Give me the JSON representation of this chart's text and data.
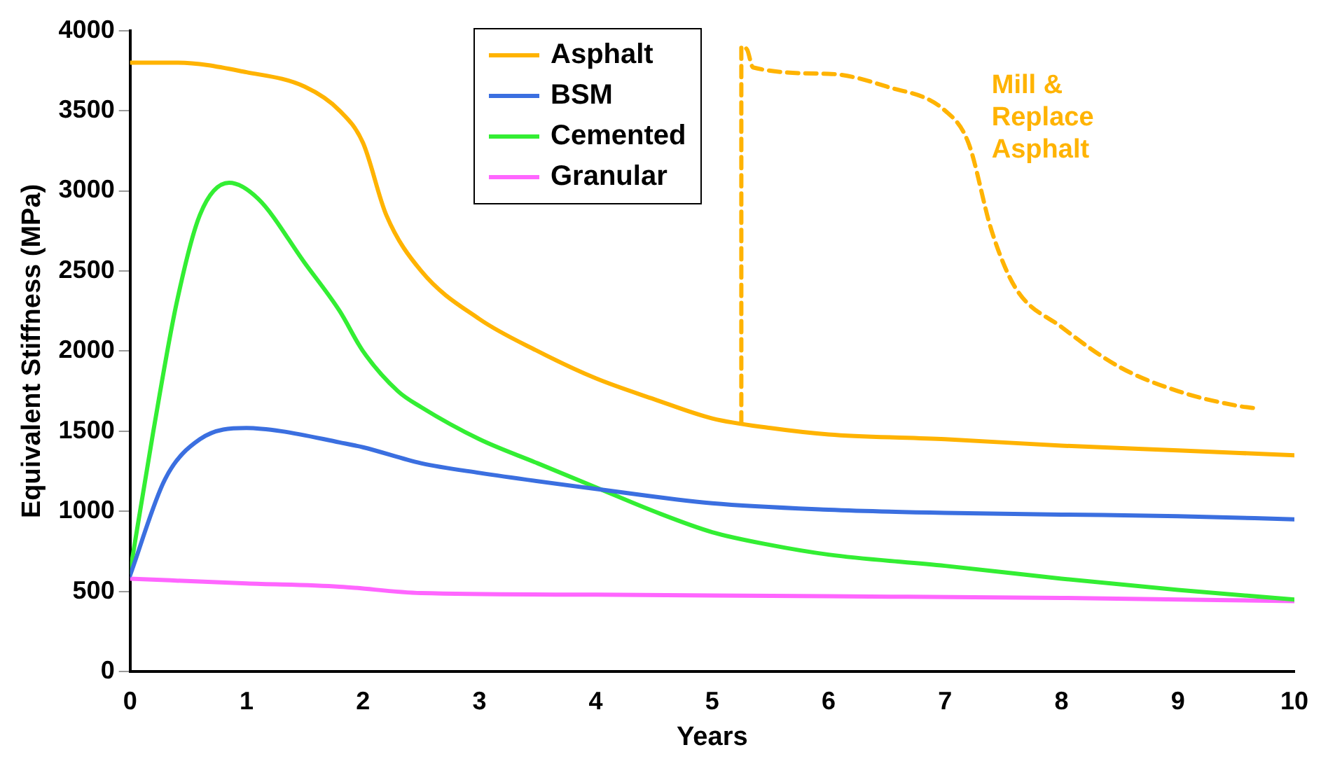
{
  "chart_data": {
    "type": "line",
    "xlabel": "Years",
    "ylabel": "Equivalent Stiffness (MPa)",
    "xlim": [
      0,
      10
    ],
    "xticks": [
      0,
      1,
      2,
      3,
      4,
      5,
      6,
      7,
      8,
      9,
      10
    ],
    "ylim": [
      0,
      4000
    ],
    "yticks": [
      0,
      500,
      1000,
      1500,
      2000,
      2500,
      3000,
      3500,
      4000
    ],
    "grid": false,
    "legend": "top",
    "marker": "none",
    "series": [
      {
        "name": "Asphalt",
        "color": "#ffb300",
        "x": [
          0,
          0.4,
          1,
          1.5,
          1.8,
          2,
          2.2,
          2.5,
          3,
          3.5,
          4,
          4.5,
          5,
          5.5,
          6,
          7,
          8,
          9,
          10
        ],
        "values": [
          3800,
          3800,
          3740,
          3650,
          3500,
          3300,
          2850,
          2500,
          2200,
          2000,
          1830,
          1700,
          1580,
          1520,
          1480,
          1450,
          1410,
          1380,
          1350
        ]
      },
      {
        "name": "BSM",
        "color": "#3b6fe0",
        "x": [
          0,
          0.3,
          0.6,
          1,
          1.3,
          1.8,
          2,
          2.5,
          3,
          4,
          5,
          6,
          7,
          8,
          9,
          10
        ],
        "values": [
          600,
          1200,
          1450,
          1520,
          1500,
          1430,
          1400,
          1300,
          1240,
          1140,
          1050,
          1010,
          990,
          980,
          970,
          950
        ]
      },
      {
        "name": "Cemented",
        "color": "#33ee33",
        "x": [
          0,
          0.2,
          0.4,
          0.6,
          0.85,
          1.1,
          1.5,
          1.8,
          2,
          2.3,
          2.5,
          3,
          3.5,
          4,
          4.5,
          5,
          5.5,
          6,
          7,
          8,
          9,
          10
        ],
        "values": [
          620,
          1500,
          2300,
          2850,
          3050,
          2950,
          2550,
          2250,
          2000,
          1750,
          1650,
          1450,
          1300,
          1150,
          1000,
          870,
          790,
          730,
          660,
          580,
          510,
          450
        ]
      },
      {
        "name": "Granular",
        "color": "#ff66ff",
        "x": [
          0,
          1,
          1.8,
          2.5,
          4,
          6,
          8,
          10
        ],
        "values": [
          580,
          550,
          530,
          490,
          480,
          470,
          460,
          440
        ]
      },
      {
        "color": "#ffb300",
        "line_style": "dashed",
        "x": [
          5.25,
          5.25,
          5.3,
          5.35,
          6,
          6.5,
          7,
          7.2,
          7.4,
          7.6,
          8,
          8.5,
          9,
          9.5,
          9.7
        ],
        "values": [
          1550,
          3900,
          3880,
          3770,
          3730,
          3650,
          3500,
          3300,
          2750,
          2400,
          2150,
          1900,
          1750,
          1660,
          1640
        ]
      }
    ],
    "annotations": [
      "Mill & Replace Asphalt"
    ]
  }
}
